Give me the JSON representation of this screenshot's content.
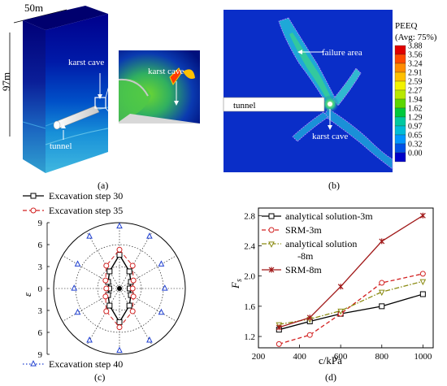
{
  "panels": {
    "a": {
      "label": "(a)",
      "width_label": "50m",
      "height_label": "97m",
      "callouts": [
        "karst cave",
        "tunnel",
        "karst cave"
      ]
    },
    "b": {
      "label": "(b)",
      "legend_title_1": "PEEQ",
      "legend_title_2": "(Avg: 75%)",
      "legend_values": [
        "3.88",
        "3.56",
        "3.24",
        "2.91",
        "2.59",
        "2.27",
        "1.94",
        "1.62",
        "1.29",
        "0.97",
        "0.65",
        "0.32",
        "0.00"
      ],
      "legend_colors": [
        "#e00000",
        "#ff4a00",
        "#ff8c00",
        "#ffc000",
        "#f2f200",
        "#b8e800",
        "#5cd600",
        "#00c83c",
        "#00c8a0",
        "#00bcd8",
        "#0096ff",
        "#0050e6",
        "#0000c8"
      ],
      "callouts": [
        "failure area",
        "tunnel",
        "karst cave"
      ]
    },
    "c": {
      "label": "(c)"
    },
    "d": {
      "label": "(d)"
    }
  },
  "chart_data": [
    {
      "type": "polar",
      "ylabel": "ε",
      "radial_ticks": [
        "9",
        "6",
        "3",
        "0",
        "3",
        "6",
        "9"
      ],
      "rmax": 9,
      "angles_deg": [
        0,
        30,
        60,
        90,
        120,
        150,
        180,
        210,
        240,
        270,
        300,
        330
      ],
      "series": [
        {
          "name": "Excavation step 30",
          "color": "#000000",
          "marker": "square",
          "dash": "solid",
          "values": [
            1.4,
            1.8,
            2.7,
            4.6,
            2.7,
            1.8,
            1.4,
            1.8,
            2.7,
            4.6,
            2.7,
            1.8
          ]
        },
        {
          "name": "Excavation step 35",
          "color": "#d22020",
          "marker": "circle",
          "dash": "dash",
          "values": [
            1.8,
            2.2,
            3.6,
            5.3,
            3.6,
            2.2,
            1.8,
            2.2,
            3.6,
            5.3,
            3.6,
            2.2
          ]
        },
        {
          "name": "Excavation step 40",
          "color": "#2040d0",
          "marker": "triangle",
          "dash": "dot",
          "values": [
            6.2,
            6.6,
            8.2,
            8.5,
            8.2,
            6.6,
            6.2,
            6.6,
            8.2,
            8.5,
            8.2,
            6.6
          ]
        }
      ]
    },
    {
      "type": "line",
      "xlabel": "c/kPa",
      "ylabel": "Fs",
      "ylabel_main": "F",
      "ylabel_sub": "s",
      "xlim": [
        200,
        1050
      ],
      "ylim": [
        1.05,
        2.9
      ],
      "xticks": [
        200,
        400,
        600,
        800,
        1000
      ],
      "yticks": [
        1.2,
        1.6,
        2.0,
        2.4,
        2.8
      ],
      "xtick_labels": [
        "200",
        "400",
        "600",
        "800",
        "1000"
      ],
      "ytick_labels": [
        "1.2",
        "1.6",
        "2.0",
        "2.4",
        "2.8"
      ],
      "x": [
        300,
        450,
        600,
        800,
        1000
      ],
      "legend_text": [
        "analytical solution-3m",
        "SRM-3m",
        "analytical solution",
        "-8m",
        "SRM-8m"
      ],
      "series": [
        {
          "name": "analytical solution-3m",
          "color": "#000000",
          "marker": "square",
          "dash": "solid",
          "values": [
            1.29,
            1.4,
            1.5,
            1.6,
            1.76
          ]
        },
        {
          "name": "SRM-3m",
          "color": "#d22020",
          "marker": "circle",
          "dash": "dash",
          "values": [
            1.1,
            1.22,
            1.5,
            1.91,
            2.03
          ]
        },
        {
          "name": "analytical solution-8m",
          "color": "#8a8a10",
          "marker": "triangle-down",
          "dash": "dashdot",
          "values": [
            1.36,
            1.43,
            1.54,
            1.79,
            1.93
          ]
        },
        {
          "name": "SRM-8m",
          "color": "#a01818",
          "marker": "star",
          "dash": "solid",
          "values": [
            1.32,
            1.45,
            1.86,
            2.46,
            2.8
          ]
        }
      ]
    }
  ]
}
